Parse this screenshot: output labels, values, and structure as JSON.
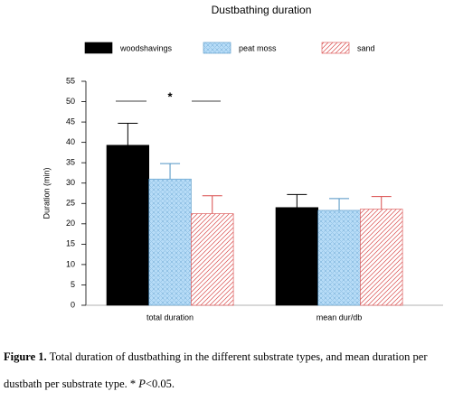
{
  "chart_data": {
    "type": "bar",
    "title": "Dustbathing duration",
    "y_label": "Duration (min)",
    "categories": [
      "total duration",
      "mean dur/db"
    ],
    "series": [
      {
        "name": "woodshavings",
        "color": "#000000",
        "pattern": "solid",
        "values": [
          39.3,
          24.0
        ],
        "errors": [
          5.4,
          3.2
        ]
      },
      {
        "name": "peat moss",
        "color": "#4f93c4",
        "pattern": "crosshatch",
        "values": [
          31.0,
          23.3
        ],
        "errors": [
          3.8,
          2.9
        ]
      },
      {
        "name": "sand",
        "color": "#d94a4a",
        "pattern": "diagonal",
        "values": [
          22.5,
          23.6
        ],
        "errors": [
          4.4,
          3.1
        ]
      }
    ],
    "ylim": [
      0,
      55
    ],
    "yticks": [
      0,
      5,
      10,
      15,
      20,
      25,
      30,
      35,
      40,
      45,
      50,
      55
    ],
    "significance": "*"
  },
  "caption": {
    "label": "Figure 1.",
    "text": "Total duration of dustbathing in the different substrate types, and mean duration per dustbath per substrate type. * ",
    "italic": "P",
    "tail": "<0.05."
  }
}
